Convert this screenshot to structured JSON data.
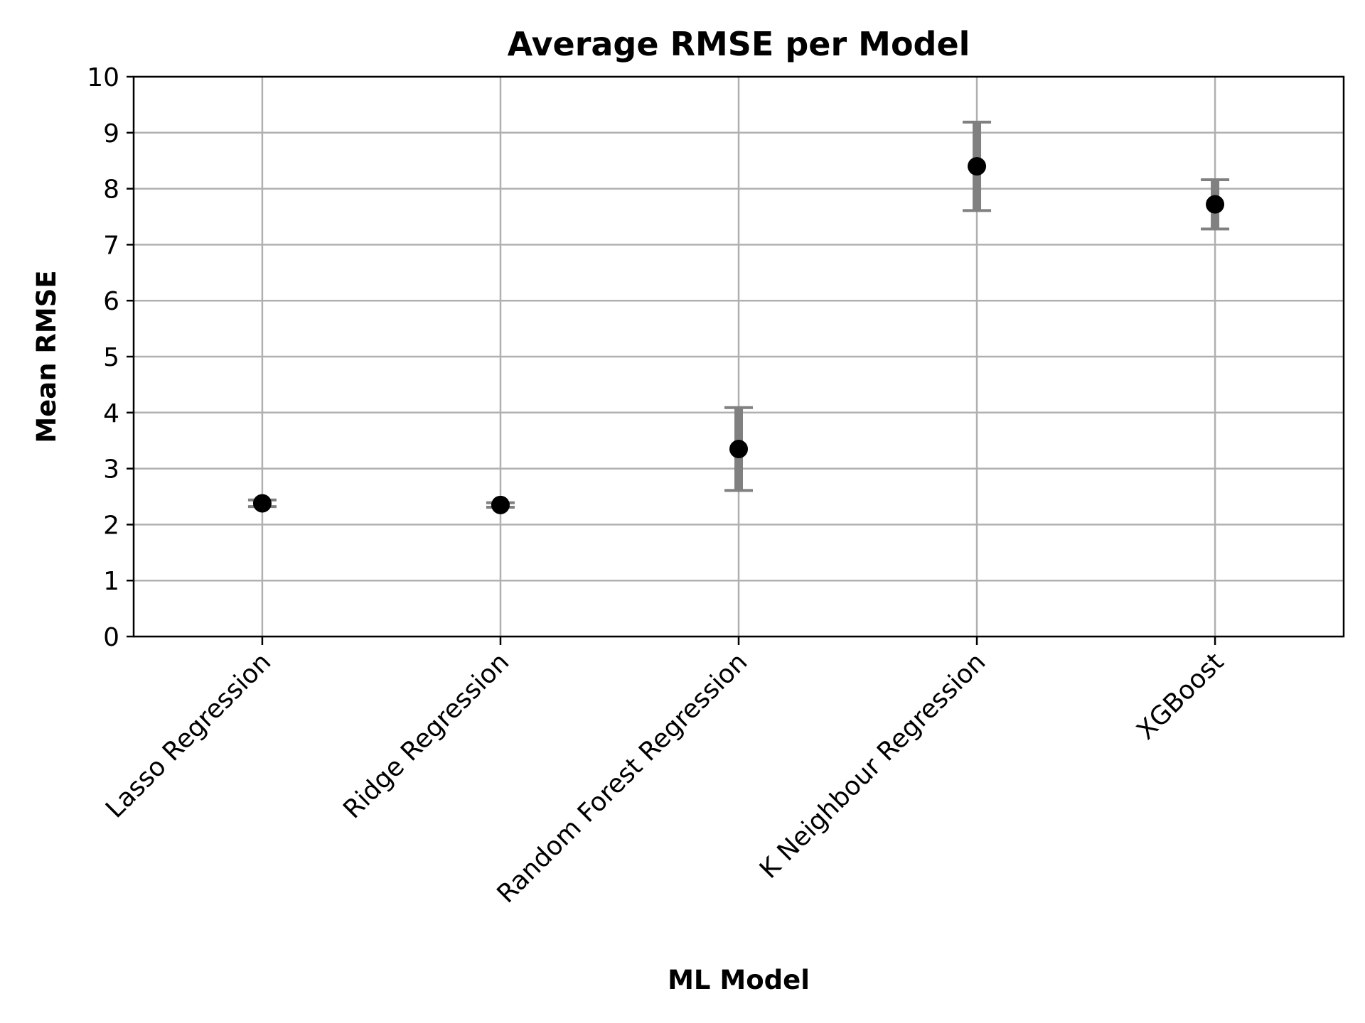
{
  "chart_data": {
    "type": "scatter",
    "title": "Average RMSE per Model",
    "xlabel": "ML Model",
    "ylabel": "Mean RMSE",
    "categories": [
      "Lasso Regression",
      "Ridge Regression",
      "Random Forest Regression",
      "K Neighbour Regression",
      "XGBoost"
    ],
    "values": [
      2.38,
      2.35,
      3.35,
      8.4,
      7.72
    ],
    "errors": [
      0.06,
      0.04,
      0.74,
      0.79,
      0.44
    ],
    "ylim": [
      0,
      10
    ],
    "yticks": [
      "0",
      "1",
      "2",
      "3",
      "4",
      "5",
      "6",
      "7",
      "8",
      "9",
      "10"
    ],
    "grid": true,
    "colors": {
      "marker": "#000000",
      "errorbar": "#808080",
      "grid": "#b0b0b0"
    }
  }
}
